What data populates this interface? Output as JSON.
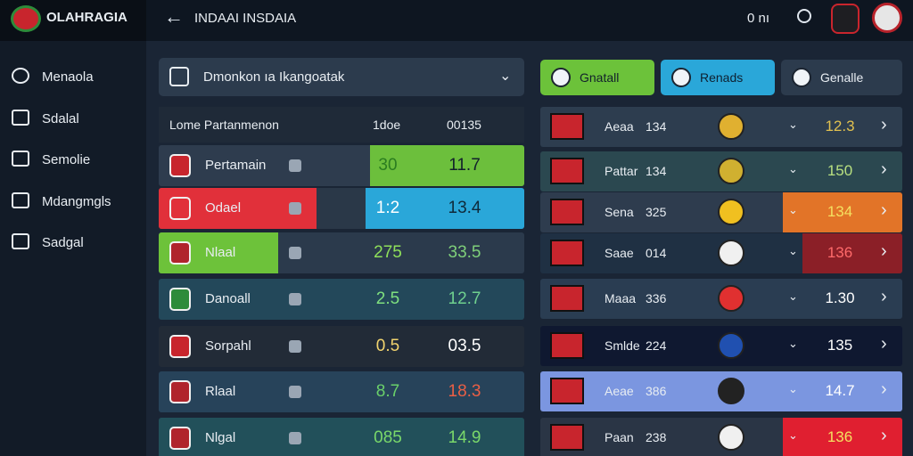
{
  "header": {
    "logo": "OLAHRAGIA",
    "title": "INDAAI INSDAIA",
    "status": "0 nı"
  },
  "sidebar": {
    "items": [
      "Menaola",
      "Sdalal",
      "Semolie",
      "Mdangmgls",
      "Sadgal"
    ]
  },
  "left_panel": {
    "dropdown": "Dmonkon ıa Ikangoatak",
    "table": {
      "columns": [
        "Lome Partanmenon",
        "1doe",
        "00135"
      ],
      "rows": [
        [
          "Pertamain",
          "30",
          "11.7"
        ],
        [
          "Odael",
          "1:2",
          "13.4"
        ],
        [
          "Nlaal",
          "275",
          "33.5"
        ],
        [
          "Danoall",
          "2.5",
          "12.7"
        ],
        [
          "Sorpahl",
          "0.5",
          "03.5"
        ],
        [
          "Rlaal",
          "8.7",
          "18.3"
        ],
        [
          "Nlgal",
          "085",
          "14.9"
        ]
      ]
    }
  },
  "right_panel": {
    "tabs": [
      "Gnatall",
      "Renads",
      "Genalle"
    ],
    "rows": [
      [
        "Aeaa",
        "134",
        "12.3"
      ],
      [
        "Pattar",
        "134",
        "150"
      ],
      [
        "Sena",
        "325",
        "134"
      ],
      [
        "Saae",
        "014",
        "136"
      ],
      [
        "Maaa",
        "336",
        "1.30"
      ],
      [
        "Smlde",
        "224",
        "135"
      ],
      [
        "Aeae",
        "386",
        "14.7"
      ],
      [
        "Paan",
        "238",
        "136"
      ]
    ]
  }
}
